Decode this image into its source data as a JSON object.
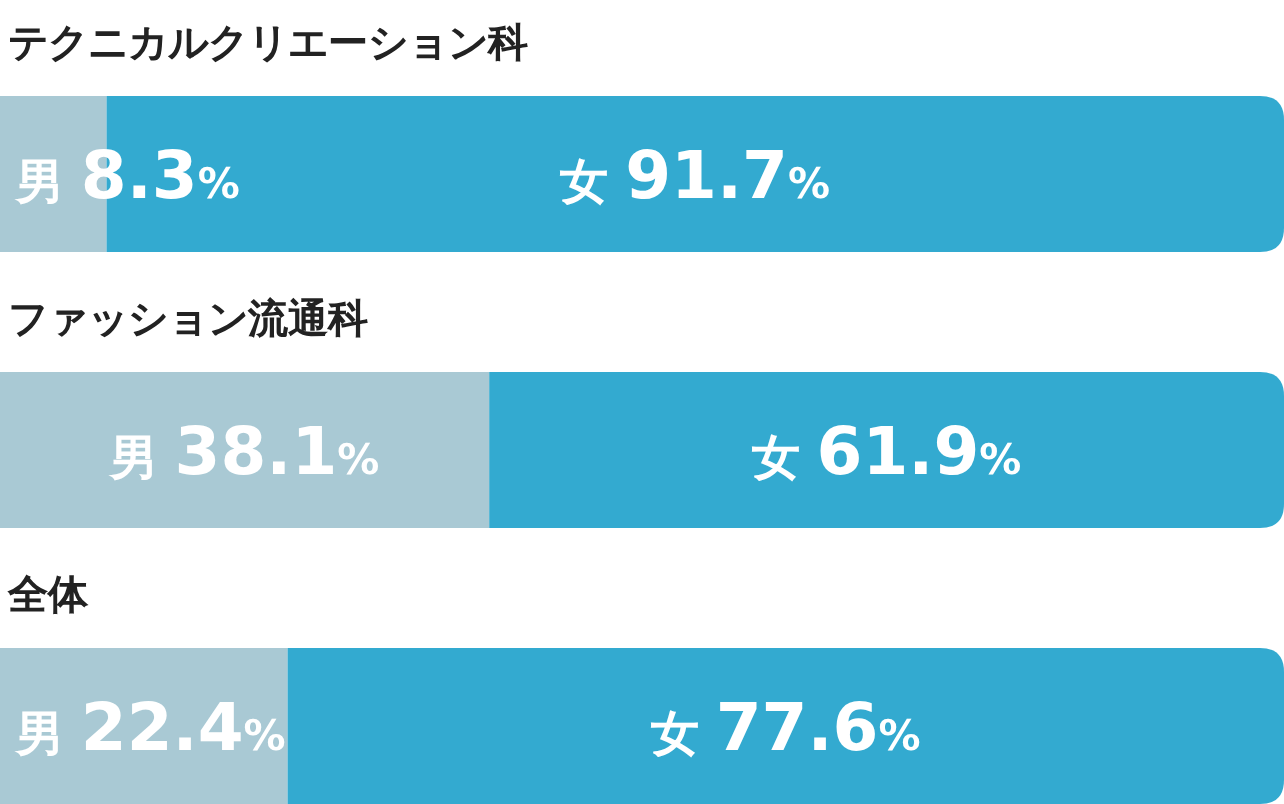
{
  "chart_data": {
    "type": "bar",
    "orientation": "horizontal",
    "stacked": true,
    "xlim": [
      0,
      100
    ],
    "categories": [
      "テクニカルクリエーション科",
      "ファッション流通科",
      "全体"
    ],
    "series": [
      {
        "name": "男",
        "color": "#a9c9d4",
        "values": [
          8.3,
          38.1,
          22.4
        ],
        "value_labels": [
          "8.3%",
          "38.1%",
          "22.4%"
        ]
      },
      {
        "name": "女",
        "color": "#33aad0",
        "values": [
          91.7,
          61.9,
          77.6
        ],
        "value_labels": [
          "91.7%",
          "61.9%",
          "77.6%"
        ]
      }
    ]
  }
}
